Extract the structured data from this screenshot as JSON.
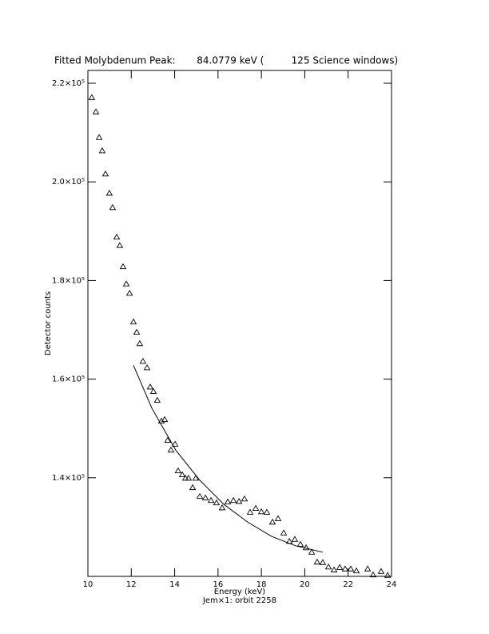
{
  "chart_data": {
    "type": "scatter",
    "title": "Fitted Molybdenum Peak:       84.0779 keV (         125 Science windows)",
    "x_label": "Energy (keV)",
    "subtitle": "Jem×1: orbit 2258",
    "y_label": "Detector counts",
    "xlim": [
      10,
      24
    ],
    "xticks": [
      10,
      12,
      14,
      16,
      18,
      20,
      22,
      24
    ],
    "ylim": [
      120000,
      222600
    ],
    "yticks": [
      {
        "value": 140000,
        "label": "1.4×10⁵"
      },
      {
        "value": 160000,
        "label": "1.6×10⁵"
      },
      {
        "value": 180000,
        "label": "1.8×10⁵"
      },
      {
        "value": 200000,
        "label": "2.0×10⁵"
      },
      {
        "value": 220000,
        "label": "2.2×10⁵"
      }
    ],
    "series": [
      {
        "marker": "triangle",
        "color": "#000000",
        "x": [
          10.18,
          10.37,
          10.52,
          10.66,
          10.81,
          10.99,
          11.14,
          11.33,
          11.47,
          11.62,
          11.77,
          11.92,
          12.1,
          12.25,
          12.39,
          12.54,
          12.73,
          12.87,
          13.02,
          13.2,
          13.39,
          13.54,
          13.68,
          13.83,
          14.02,
          14.16,
          14.35,
          14.5,
          14.64,
          14.83,
          14.97,
          15.16,
          15.42,
          15.68,
          15.93,
          16.19,
          16.45,
          16.71,
          16.97,
          17.22,
          17.48,
          17.74,
          18.0,
          18.25,
          18.51,
          18.77,
          19.03,
          19.29,
          19.54,
          19.8,
          20.06,
          20.32,
          20.57,
          20.83,
          21.09,
          21.35,
          21.61,
          21.86,
          22.12,
          22.38,
          22.9,
          23.15,
          23.52,
          23.82
        ],
        "values": [
          217100,
          214200,
          209000,
          206300,
          201600,
          197700,
          194800,
          188800,
          187100,
          182800,
          179300,
          177400,
          171600,
          169500,
          167200,
          163600,
          162300,
          158400,
          157500,
          155700,
          151500,
          151800,
          147600,
          145600,
          146800,
          141400,
          140600,
          139900,
          139900,
          138000,
          139900,
          136200,
          135900,
          135400,
          134900,
          133900,
          135100,
          135400,
          135200,
          135700,
          133000,
          133800,
          133100,
          133000,
          131000,
          131700,
          128800,
          127100,
          127500,
          126500,
          125800,
          124900,
          122900,
          122800,
          121900,
          121300,
          121800,
          121500,
          121500,
          121100,
          121500,
          120300,
          121000,
          120200
        ]
      },
      {
        "marker": "line",
        "color": "#000000",
        "x": [
          12.1,
          12.95,
          14.05,
          15.16,
          16.27,
          17.37,
          18.47,
          19.58,
          20.83
        ],
        "values": [
          162800,
          154100,
          145600,
          139500,
          134600,
          131000,
          128100,
          126200,
          124900
        ]
      }
    ]
  }
}
